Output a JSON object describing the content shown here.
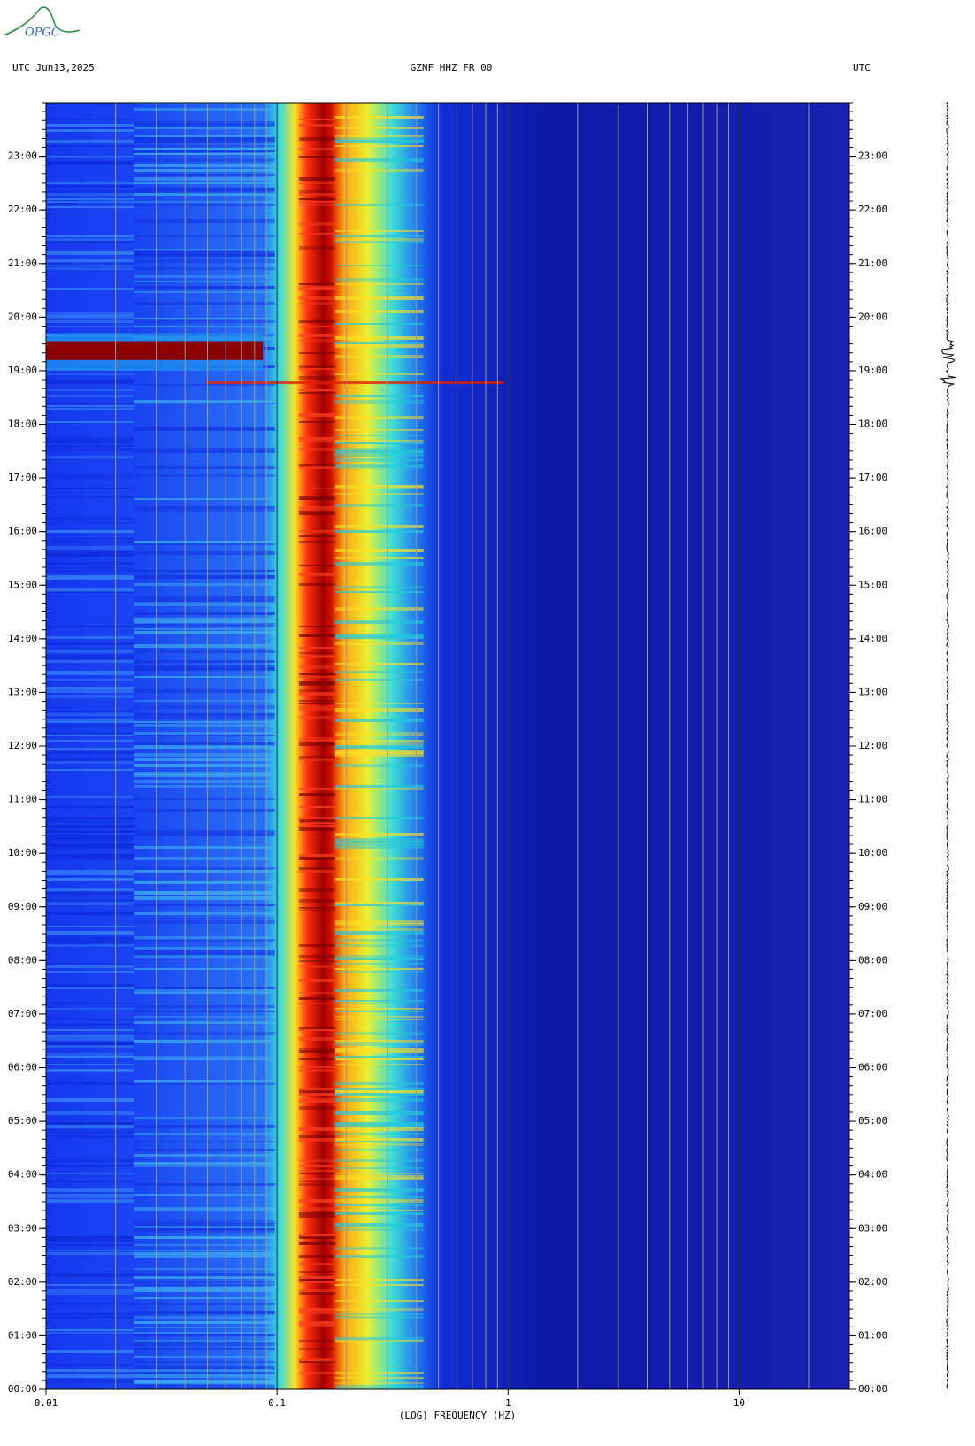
{
  "logo": "OPGC",
  "chart_data": {
    "type": "spectrogram",
    "date_label": "UTC  Jun13,2025",
    "title": "GZNF HHZ FR 00",
    "right_label": "UTC",
    "xlabel": "(LOG) FREQUENCY (HZ)",
    "xscale": "log",
    "xlim": [
      0.01,
      30
    ],
    "xticks": [
      0.01,
      0.1,
      1,
      10
    ],
    "ylim": [
      0,
      24
    ],
    "yticks": [
      {
        "value": 0,
        "label": "00:00"
      },
      {
        "value": 1,
        "label": "01:00"
      },
      {
        "value": 2,
        "label": "02:00"
      },
      {
        "value": 3,
        "label": "03:00"
      },
      {
        "value": 4,
        "label": "04:00"
      },
      {
        "value": 5,
        "label": "05:00"
      },
      {
        "value": 6,
        "label": "06:00"
      },
      {
        "value": 7,
        "label": "07:00"
      },
      {
        "value": 8,
        "label": "08:00"
      },
      {
        "value": 9,
        "label": "09:00"
      },
      {
        "value": 10,
        "label": "10:00"
      },
      {
        "value": 11,
        "label": "11:00"
      },
      {
        "value": 12,
        "label": "12:00"
      },
      {
        "value": 13,
        "label": "13:00"
      },
      {
        "value": 14,
        "label": "14:00"
      },
      {
        "value": 15,
        "label": "15:00"
      },
      {
        "value": 16,
        "label": "16:00"
      },
      {
        "value": 17,
        "label": "17:00"
      },
      {
        "value": 18,
        "label": "18:00"
      },
      {
        "value": 19,
        "label": "19:00"
      },
      {
        "value": 20,
        "label": "20:00"
      },
      {
        "value": 21,
        "label": "21:00"
      },
      {
        "value": 22,
        "label": "22:00"
      },
      {
        "value": 23,
        "label": "23:00"
      }
    ]
  }
}
